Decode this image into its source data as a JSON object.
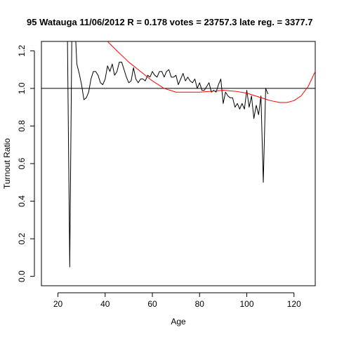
{
  "chart_data": {
    "type": "line",
    "title": "95 Watauga 11/06/2012 R = 0.178 votes = 23757.3 late reg. = 3377.7",
    "xlabel": "Age",
    "ylabel": "Turnout Ratio",
    "xlim": [
      13,
      129
    ],
    "ylim": [
      -0.05,
      1.25
    ],
    "xticks": [
      20,
      40,
      60,
      80,
      100,
      120
    ],
    "yticks": [
      0.0,
      0.2,
      0.4,
      0.6,
      0.8,
      1.0,
      1.2
    ],
    "grid": false,
    "reference_line": {
      "y": 1.0,
      "color": "#000000"
    },
    "series": [
      {
        "color": "#000000",
        "x": [
          24,
          25,
          26,
          27,
          28,
          29,
          30,
          31,
          32,
          33,
          34,
          35,
          36,
          37,
          38,
          39,
          40,
          41,
          42,
          43,
          44,
          45,
          46,
          47,
          48,
          49,
          50,
          51,
          52,
          53,
          54,
          55,
          56,
          57,
          58,
          59,
          60,
          61,
          62,
          63,
          64,
          65,
          66,
          67,
          68,
          69,
          70,
          71,
          72,
          73,
          74,
          75,
          76,
          77,
          78,
          79,
          80,
          81,
          82,
          83,
          84,
          85,
          86,
          87,
          88,
          89,
          90,
          91,
          92,
          93,
          94,
          95,
          96,
          97,
          98,
          99,
          100,
          101,
          102,
          103,
          104,
          105,
          106,
          107,
          108,
          109
        ],
        "y": [
          1.3,
          0.05,
          1.45,
          1.4,
          1.13,
          1.08,
          1.02,
          0.94,
          0.95,
          0.98,
          1.05,
          1.09,
          1.09,
          1.07,
          1.03,
          1.02,
          1.05,
          1.12,
          1.09,
          1.13,
          1.07,
          1.09,
          1.14,
          1.14,
          1.1,
          1.06,
          1.03,
          1.04,
          1.11,
          1.05,
          1.03,
          1.05,
          1.05,
          1.04,
          1.07,
          1.06,
          1.09,
          1.07,
          1.06,
          1.09,
          1.09,
          1.06,
          1.09,
          1.1,
          1.06,
          1.06,
          1.07,
          1.02,
          1.05,
          1.08,
          1.04,
          1.06,
          1.04,
          1.03,
          1.05,
          1.0,
          1.03,
          0.99,
          0.99,
          1.01,
          1.03,
          0.98,
          0.99,
          0.98,
          1.02,
          1.05,
          0.92,
          0.98,
          0.96,
          0.95,
          0.95,
          0.9,
          0.92,
          0.89,
          0.92,
          0.89,
          0.99,
          0.9,
          0.96,
          0.84,
          0.91,
          0.86,
          0.96,
          0.5,
          1.0,
          0.97
        ]
      },
      {
        "color": "#ff0000",
        "x": [
          41,
          45,
          50,
          55,
          60,
          65,
          70,
          75,
          80,
          85,
          90,
          95,
          100,
          105,
          110,
          114,
          117,
          120,
          123,
          126,
          129
        ],
        "y": [
          1.25,
          1.2,
          1.14,
          1.09,
          1.04,
          1.0,
          0.98,
          0.98,
          0.98,
          0.985,
          0.99,
          0.985,
          0.975,
          0.955,
          0.935,
          0.925,
          0.925,
          0.935,
          0.96,
          1.01,
          1.09
        ]
      }
    ]
  }
}
